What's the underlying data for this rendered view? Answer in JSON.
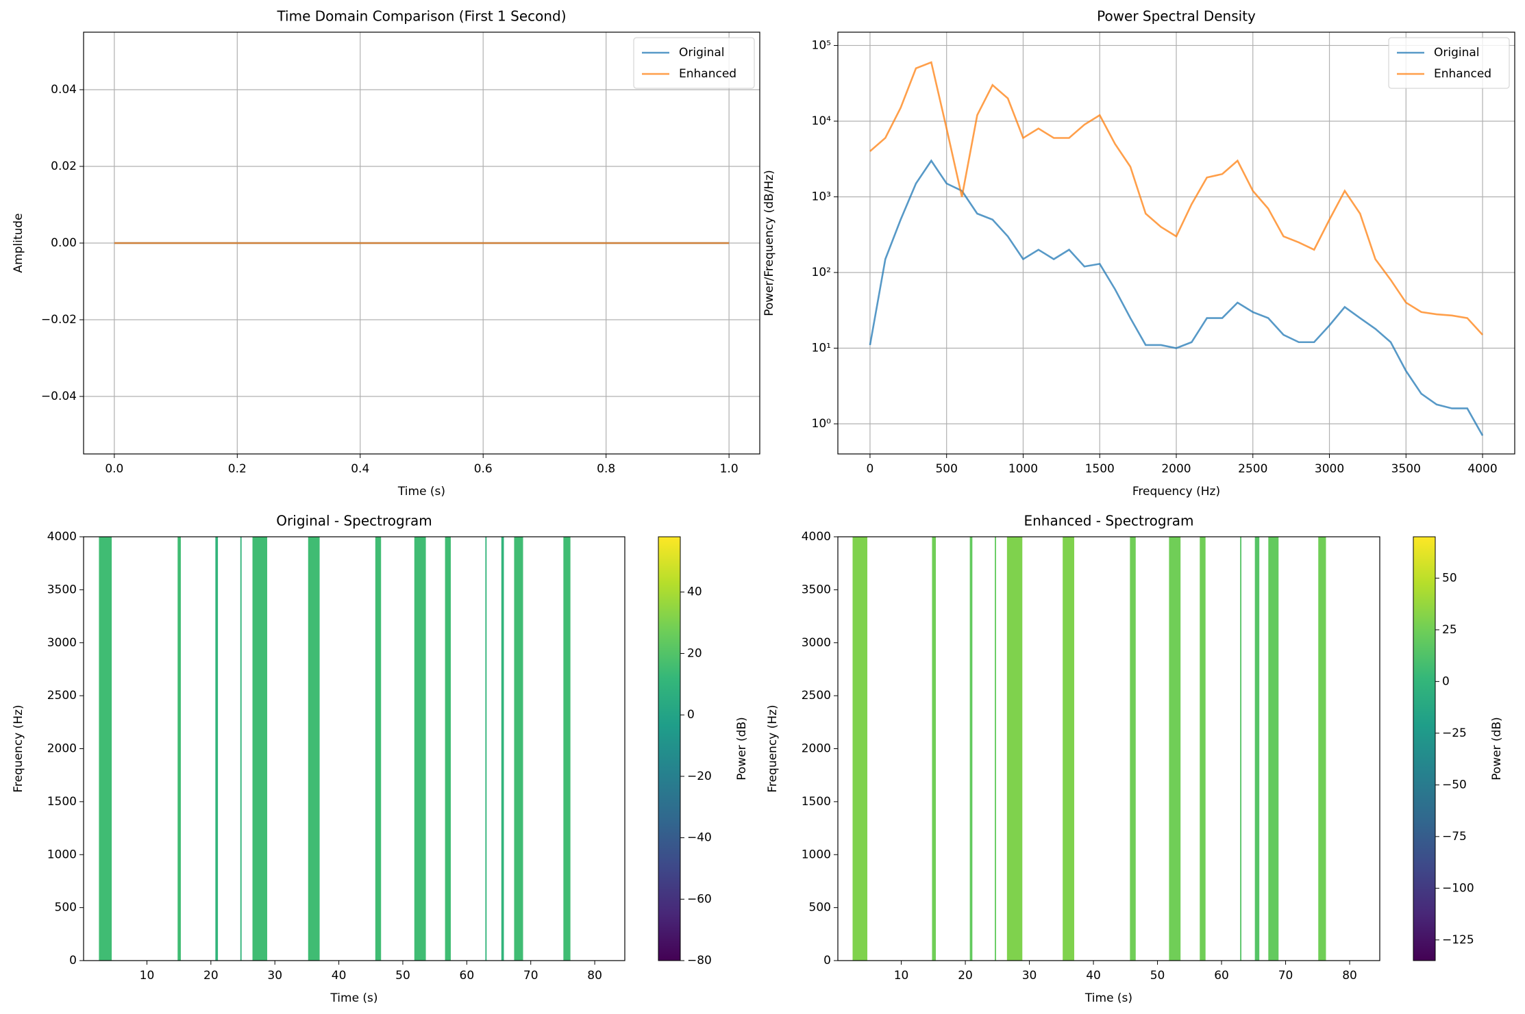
{
  "chart_data": [
    {
      "type": "line",
      "title": "Time Domain Comparison (First 1 Second)",
      "xlabel": "Time (s)",
      "ylabel": "Amplitude",
      "x": [
        0,
        1
      ],
      "series": [
        {
          "name": "Original",
          "color": "#1f77b4",
          "values": [
            0,
            0
          ]
        },
        {
          "name": "Enhanced",
          "color": "#ff7f0e",
          "values": [
            0,
            0
          ]
        }
      ],
      "xlim": [
        -0.05,
        1.05
      ],
      "ylim": [
        -0.055,
        0.055
      ],
      "xticks": [
        {
          "value": 0,
          "label": "0.0"
        },
        {
          "value": 0.2,
          "label": "0.2"
        },
        {
          "value": 0.4,
          "label": "0.4"
        },
        {
          "value": 0.6,
          "label": "0.6"
        },
        {
          "value": 0.8,
          "label": "0.8"
        },
        {
          "value": 1,
          "label": "1.0"
        }
      ],
      "yticks": [
        {
          "value": -0.04,
          "label": "−0.04"
        },
        {
          "value": -0.02,
          "label": "−0.02"
        },
        {
          "value": 0,
          "label": "0.00"
        },
        {
          "value": 0.02,
          "label": "0.02"
        },
        {
          "value": 0.04,
          "label": "0.04"
        }
      ],
      "grid": true,
      "legend": "upper right"
    },
    {
      "type": "line",
      "title": "Power Spectral Density",
      "xlabel": "Frequency (Hz)",
      "ylabel": "Power/Frequency (dB/Hz)",
      "log_y": true,
      "x": [
        0,
        100,
        200,
        300,
        400,
        500,
        600,
        700,
        800,
        900,
        1000,
        1100,
        1200,
        1300,
        1400,
        1500,
        1600,
        1700,
        1800,
        1900,
        2000,
        2100,
        2200,
        2300,
        2400,
        2500,
        2600,
        2700,
        2800,
        2900,
        3000,
        3100,
        3200,
        3300,
        3400,
        3500,
        3600,
        3700,
        3800,
        3900,
        4000
      ],
      "series": [
        {
          "name": "Original",
          "color": "#1f77b4",
          "values": [
            11,
            150,
            500,
            1500,
            3000,
            1500,
            1200,
            600,
            500,
            300,
            150,
            200,
            150,
            200,
            120,
            130,
            60,
            25,
            11,
            11,
            10,
            12,
            25,
            25,
            40,
            30,
            25,
            15,
            12,
            12,
            20,
            35,
            25,
            18,
            12,
            5,
            2.5,
            1.8,
            1.6,
            1.6,
            0.7
          ]
        },
        {
          "name": "Enhanced",
          "color": "#ff7f0e",
          "values": [
            4000,
            6000,
            15000,
            50000,
            60000,
            8000,
            1000,
            12000,
            30000,
            20000,
            6000,
            8000,
            6000,
            6000,
            9000,
            12000,
            5000,
            2500,
            600,
            400,
            300,
            800,
            1800,
            2000,
            3000,
            1200,
            700,
            300,
            250,
            200,
            500,
            1200,
            600,
            150,
            80,
            40,
            30,
            28,
            27,
            25,
            15
          ]
        }
      ],
      "xlim": [
        -210,
        4210
      ],
      "ylim": [
        0.4,
        150000
      ],
      "xticks": [
        0,
        500,
        1000,
        1500,
        2000,
        2500,
        3000,
        3500,
        4000
      ],
      "yticks": [
        {
          "value": 1,
          "label": "10⁰"
        },
        {
          "value": 10,
          "label": "10¹"
        },
        {
          "value": 100,
          "label": "10²"
        },
        {
          "value": 1000,
          "label": "10³"
        },
        {
          "value": 10000,
          "label": "10⁴"
        },
        {
          "value": 100000,
          "label": "10⁵"
        }
      ],
      "grid": true,
      "legend": "upper right"
    },
    {
      "type": "spectrogram",
      "title": "Original - Spectrogram",
      "xlabel": "Time (s)",
      "ylabel": "Frequency (Hz)",
      "colorbar_label": "Power (dB)",
      "segments": [
        [
          2.5,
          4.5
        ],
        [
          14.8,
          15.3
        ],
        [
          20.7,
          21.1
        ],
        [
          24.6,
          24.8
        ],
        [
          26.5,
          28.8
        ],
        [
          35.2,
          37.0
        ],
        [
          45.7,
          46.6
        ],
        [
          51.8,
          53.6
        ],
        [
          56.6,
          57.5
        ],
        [
          62.9,
          63.1
        ],
        [
          65.4,
          65.8
        ],
        [
          67.4,
          68.8
        ],
        [
          75.1,
          76.2
        ]
      ],
      "values": [
        15,
        15,
        10,
        10,
        15,
        15,
        15,
        15,
        15,
        10,
        10,
        15,
        15
      ],
      "xlim": [
        0.1,
        84.7
      ],
      "ylim": [
        0,
        4000
      ],
      "xticks": [
        10,
        20,
        30,
        40,
        50,
        60,
        70,
        80
      ],
      "yticks": [
        0,
        500,
        1000,
        1500,
        2000,
        2500,
        3000,
        3500,
        4000
      ],
      "clim": [
        -80,
        58
      ],
      "cticks": [
        {
          "value": -80,
          "label": "−80"
        },
        {
          "value": -60,
          "label": "−60"
        },
        {
          "value": -40,
          "label": "−40"
        },
        {
          "value": -20,
          "label": "−20"
        },
        0,
        20,
        40
      ]
    },
    {
      "type": "spectrogram",
      "title": "Enhanced - Spectrogram",
      "xlabel": "Time (s)",
      "ylabel": "Frequency (Hz)",
      "colorbar_label": "Power (dB)",
      "segments": [
        [
          2.4,
          4.7
        ],
        [
          14.8,
          15.4
        ],
        [
          20.7,
          21.1
        ],
        [
          24.6,
          24.8
        ],
        [
          26.5,
          28.9
        ],
        [
          35.2,
          37.0
        ],
        [
          45.7,
          46.6
        ],
        [
          51.8,
          53.6
        ],
        [
          56.6,
          57.5
        ],
        [
          62.9,
          63.1
        ],
        [
          65.2,
          65.9
        ],
        [
          67.3,
          68.9
        ],
        [
          75.1,
          76.3
        ]
      ],
      "values": [
        30,
        25,
        20,
        20,
        30,
        30,
        25,
        25,
        25,
        15,
        15,
        20,
        25
      ],
      "xlim": [
        0.1,
        84.7
      ],
      "ylim": [
        0,
        4000
      ],
      "xticks": [
        10,
        20,
        30,
        40,
        50,
        60,
        70,
        80
      ],
      "yticks": [
        0,
        500,
        1000,
        1500,
        2000,
        2500,
        3000,
        3500,
        4000
      ],
      "clim": [
        -135,
        70
      ],
      "cticks": [
        {
          "value": -125,
          "label": "−125"
        },
        {
          "value": -100,
          "label": "−100"
        },
        {
          "value": -75,
          "label": "−75"
        },
        {
          "value": -50,
          "label": "−50"
        },
        {
          "value": -25,
          "label": "−25"
        },
        0,
        25,
        50
      ]
    }
  ]
}
